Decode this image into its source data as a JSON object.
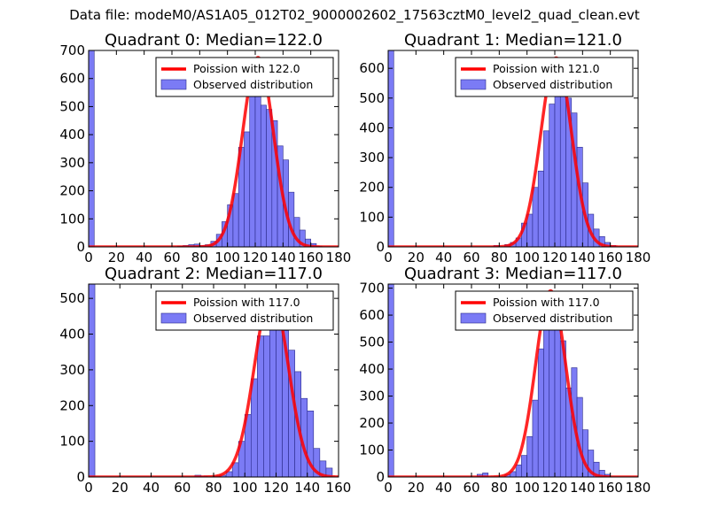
{
  "figure": {
    "suptitle": "Data file: modeM0/AS1A05_012T02_9000002602_17563cztM0_level2_quad_clean.evt"
  },
  "chart_data": [
    {
      "type": "bar",
      "title": "Quadrant 0: Median=122.0",
      "xlim": [
        0,
        180
      ],
      "ylim": [
        0,
        700
      ],
      "xticks": [
        0,
        20,
        40,
        60,
        80,
        100,
        120,
        140,
        160,
        180
      ],
      "yticks": [
        0,
        100,
        200,
        300,
        400,
        500,
        600,
        700
      ],
      "bin_width": 4,
      "bins": [
        {
          "x": 0,
          "count": 700
        },
        {
          "x": 64,
          "count": 3
        },
        {
          "x": 68,
          "count": 5
        },
        {
          "x": 72,
          "count": 8
        },
        {
          "x": 76,
          "count": 10
        },
        {
          "x": 80,
          "count": 5
        },
        {
          "x": 84,
          "count": 8
        },
        {
          "x": 88,
          "count": 20
        },
        {
          "x": 92,
          "count": 45
        },
        {
          "x": 96,
          "count": 90
        },
        {
          "x": 100,
          "count": 150
        },
        {
          "x": 104,
          "count": 190
        },
        {
          "x": 108,
          "count": 355
        },
        {
          "x": 112,
          "count": 410
        },
        {
          "x": 116,
          "count": 540
        },
        {
          "x": 120,
          "count": 630
        },
        {
          "x": 124,
          "count": 505
        },
        {
          "x": 128,
          "count": 490
        },
        {
          "x": 132,
          "count": 450
        },
        {
          "x": 136,
          "count": 360
        },
        {
          "x": 140,
          "count": 310
        },
        {
          "x": 144,
          "count": 195
        },
        {
          "x": 148,
          "count": 105
        },
        {
          "x": 152,
          "count": 60
        },
        {
          "x": 156,
          "count": 28
        },
        {
          "x": 160,
          "count": 12
        },
        {
          "x": 164,
          "count": 3
        }
      ],
      "curve": {
        "mean": 122.0,
        "peak": 675
      },
      "legend": {
        "line_label": "Poission with 122.0",
        "bar_label": "Observed distribution",
        "position": "top-right"
      }
    },
    {
      "type": "bar",
      "title": "Quadrant 1: Median=121.0",
      "xlim": [
        0,
        180
      ],
      "ylim": [
        0,
        660
      ],
      "xticks": [
        0,
        20,
        40,
        60,
        80,
        100,
        120,
        140,
        160,
        180
      ],
      "yticks": [
        0,
        100,
        200,
        300,
        400,
        500,
        600
      ],
      "bin_width": 4,
      "bins": [
        {
          "x": 0,
          "count": 660
        },
        {
          "x": 76,
          "count": 5
        },
        {
          "x": 84,
          "count": 8
        },
        {
          "x": 88,
          "count": 15
        },
        {
          "x": 92,
          "count": 30
        },
        {
          "x": 96,
          "count": 80
        },
        {
          "x": 100,
          "count": 110
        },
        {
          "x": 104,
          "count": 200
        },
        {
          "x": 108,
          "count": 255
        },
        {
          "x": 112,
          "count": 390
        },
        {
          "x": 116,
          "count": 480
        },
        {
          "x": 120,
          "count": 580
        },
        {
          "x": 124,
          "count": 605
        },
        {
          "x": 128,
          "count": 500
        },
        {
          "x": 132,
          "count": 450
        },
        {
          "x": 136,
          "count": 335
        },
        {
          "x": 140,
          "count": 215
        },
        {
          "x": 144,
          "count": 110
        },
        {
          "x": 148,
          "count": 60
        },
        {
          "x": 152,
          "count": 35
        },
        {
          "x": 156,
          "count": 15
        },
        {
          "x": 160,
          "count": 5
        }
      ],
      "curve": {
        "mean": 121.0,
        "peak": 635
      },
      "legend": {
        "line_label": "Poission with 121.0",
        "bar_label": "Observed distribution",
        "position": "top-right"
      }
    },
    {
      "type": "bar",
      "title": "Quadrant 2: Median=117.0",
      "xlim": [
        0,
        160
      ],
      "ylim": [
        0,
        540
      ],
      "xticks": [
        0,
        20,
        40,
        60,
        80,
        100,
        120,
        140,
        160
      ],
      "yticks": [
        0,
        100,
        200,
        300,
        400,
        500
      ],
      "bin_width": 4,
      "bins": [
        {
          "x": 0,
          "count": 540
        },
        {
          "x": 68,
          "count": 5
        },
        {
          "x": 72,
          "count": 3
        },
        {
          "x": 80,
          "count": 3
        },
        {
          "x": 84,
          "count": 5
        },
        {
          "x": 88,
          "count": 15
        },
        {
          "x": 92,
          "count": 40
        },
        {
          "x": 96,
          "count": 100
        },
        {
          "x": 100,
          "count": 175
        },
        {
          "x": 104,
          "count": 275
        },
        {
          "x": 108,
          "count": 395
        },
        {
          "x": 112,
          "count": 395
        },
        {
          "x": 116,
          "count": 500
        },
        {
          "x": 120,
          "count": 490
        },
        {
          "x": 124,
          "count": 410
        },
        {
          "x": 128,
          "count": 355
        },
        {
          "x": 132,
          "count": 295
        },
        {
          "x": 136,
          "count": 220
        },
        {
          "x": 140,
          "count": 185
        },
        {
          "x": 144,
          "count": 80
        },
        {
          "x": 148,
          "count": 45
        },
        {
          "x": 152,
          "count": 25
        }
      ],
      "curve": {
        "mean": 117.0,
        "peak": 515
      },
      "legend": {
        "line_label": "Poission with 117.0",
        "bar_label": "Observed distribution",
        "position": "top-right"
      }
    },
    {
      "type": "bar",
      "title": "Quadrant 3: Median=117.0",
      "xlim": [
        0,
        180
      ],
      "ylim": [
        0,
        715
      ],
      "xticks": [
        0,
        20,
        40,
        60,
        80,
        100,
        120,
        140,
        160,
        180
      ],
      "yticks": [
        0,
        100,
        200,
        300,
        400,
        500,
        600,
        700
      ],
      "bin_width": 4,
      "bins": [
        {
          "x": 0,
          "count": 715
        },
        {
          "x": 64,
          "count": 10
        },
        {
          "x": 68,
          "count": 15
        },
        {
          "x": 84,
          "count": 8
        },
        {
          "x": 88,
          "count": 20
        },
        {
          "x": 92,
          "count": 45
        },
        {
          "x": 96,
          "count": 80
        },
        {
          "x": 100,
          "count": 150
        },
        {
          "x": 104,
          "count": 285
        },
        {
          "x": 108,
          "count": 475
        },
        {
          "x": 112,
          "count": 545
        },
        {
          "x": 116,
          "count": 620
        },
        {
          "x": 120,
          "count": 575
        },
        {
          "x": 124,
          "count": 505
        },
        {
          "x": 128,
          "count": 330
        },
        {
          "x": 132,
          "count": 405
        },
        {
          "x": 136,
          "count": 295
        },
        {
          "x": 140,
          "count": 175
        },
        {
          "x": 144,
          "count": 100
        },
        {
          "x": 148,
          "count": 55
        },
        {
          "x": 152,
          "count": 25
        },
        {
          "x": 156,
          "count": 10
        }
      ],
      "curve": {
        "mean": 117.0,
        "peak": 690
      },
      "legend": {
        "line_label": "Poission with 117.0",
        "bar_label": "Observed distribution",
        "position": "top-right"
      }
    }
  ],
  "colors": {
    "bar_fill": "#7b7bf5",
    "bar_edge": "#2a2a8a",
    "curve": "#ff0000",
    "axis": "#000000"
  }
}
